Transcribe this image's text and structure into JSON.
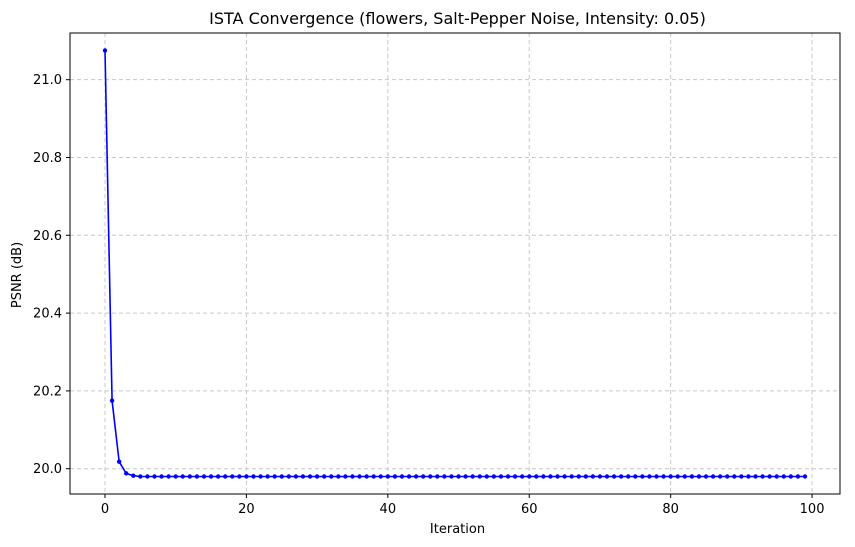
{
  "chart_data": {
    "type": "line",
    "title": "ISTA Convergence (flowers, Salt-Pepper Noise, Intensity: 0.05)",
    "xlabel": "Iteration",
    "ylabel": "PSNR (dB)",
    "xlim": [
      -4.95,
      103.95
    ],
    "ylim": [
      19.935,
      21.12
    ],
    "xticks": [
      0,
      20,
      40,
      60,
      80,
      100
    ],
    "xtick_labels": [
      "0",
      "20",
      "40",
      "60",
      "80",
      "100"
    ],
    "yticks": [
      20.0,
      20.2,
      20.4,
      20.6,
      20.8,
      21.0
    ],
    "ytick_labels": [
      "20.0",
      "20.2",
      "20.4",
      "20.6",
      "20.8",
      "21.0"
    ],
    "grid": true,
    "grid_style": "dashed",
    "marker": "circle",
    "colors": {
      "line": "#0000ff",
      "grid": "#c8c8c8",
      "axes": "#000000"
    },
    "series": [
      {
        "x": [
          0,
          1,
          2,
          3,
          4,
          5,
          6,
          7,
          8,
          9,
          10,
          11,
          12,
          13,
          14,
          15,
          16,
          17,
          18,
          19,
          20,
          21,
          22,
          23,
          24,
          25,
          26,
          27,
          28,
          29,
          30,
          31,
          32,
          33,
          34,
          35,
          36,
          37,
          38,
          39,
          40,
          41,
          42,
          43,
          44,
          45,
          46,
          47,
          48,
          49,
          50,
          51,
          52,
          53,
          54,
          55,
          56,
          57,
          58,
          59,
          60,
          61,
          62,
          63,
          64,
          65,
          66,
          67,
          68,
          69,
          70,
          71,
          72,
          73,
          74,
          75,
          76,
          77,
          78,
          79,
          80,
          81,
          82,
          83,
          84,
          85,
          86,
          87,
          88,
          89,
          90,
          91,
          92,
          93,
          94,
          95,
          96,
          97,
          98,
          99
        ],
        "values": [
          21.075,
          20.175,
          20.018,
          19.988,
          19.982,
          19.98,
          19.98,
          19.98,
          19.98,
          19.98,
          19.98,
          19.98,
          19.98,
          19.98,
          19.98,
          19.98,
          19.98,
          19.98,
          19.98,
          19.98,
          19.98,
          19.98,
          19.98,
          19.98,
          19.98,
          19.98,
          19.98,
          19.98,
          19.98,
          19.98,
          19.98,
          19.98,
          19.98,
          19.98,
          19.98,
          19.98,
          19.98,
          19.98,
          19.98,
          19.98,
          19.98,
          19.98,
          19.98,
          19.98,
          19.98,
          19.98,
          19.98,
          19.98,
          19.98,
          19.98,
          19.98,
          19.98,
          19.98,
          19.98,
          19.98,
          19.98,
          19.98,
          19.98,
          19.98,
          19.98,
          19.98,
          19.98,
          19.98,
          19.98,
          19.98,
          19.98,
          19.98,
          19.98,
          19.98,
          19.98,
          19.98,
          19.98,
          19.98,
          19.98,
          19.98,
          19.98,
          19.98,
          19.98,
          19.98,
          19.98,
          19.98,
          19.98,
          19.98,
          19.98,
          19.98,
          19.98,
          19.98,
          19.98,
          19.98,
          19.98,
          19.98,
          19.98,
          19.98,
          19.98,
          19.98,
          19.98,
          19.98,
          19.98,
          19.98,
          19.98
        ]
      }
    ]
  }
}
